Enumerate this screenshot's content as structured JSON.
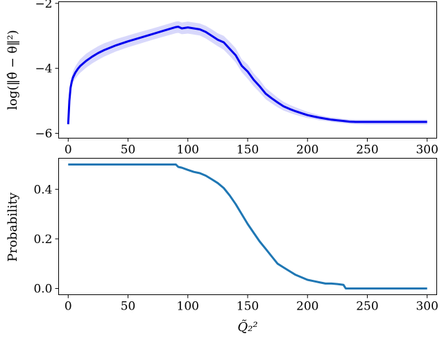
{
  "chart_data": [
    {
      "type": "line",
      "ylabel": "log(‖θ̂ − θ‖²)",
      "xlabel": "",
      "xlim": [
        -8,
        308
      ],
      "ylim": [
        -6.15,
        -1.95
      ],
      "xticks": [
        0,
        50,
        100,
        150,
        200,
        250,
        300
      ],
      "xtick_labels": [
        "0",
        "50",
        "100",
        "150",
        "200",
        "250",
        "300"
      ],
      "yticks": [
        -6,
        -4,
        -2
      ],
      "ytick_labels": [
        "−6",
        "−4",
        "−2"
      ],
      "grid": false,
      "line_color": "#0000ee",
      "band_color": "#d8d8fb",
      "series": [
        {
          "x": [
            0,
            1,
            2,
            3,
            4,
            6,
            8,
            10,
            15,
            20,
            25,
            30,
            40,
            50,
            60,
            70,
            80,
            90,
            92,
            95,
            100,
            105,
            110,
            115,
            120,
            125,
            130,
            135,
            140,
            145,
            150,
            155,
            160,
            165,
            170,
            175,
            180,
            185,
            190,
            195,
            200,
            205,
            210,
            215,
            220,
            225,
            230,
            235,
            240,
            250,
            260,
            280,
            300
          ],
          "values": [
            -5.72,
            -5.0,
            -4.6,
            -4.4,
            -4.28,
            -4.13,
            -4.02,
            -3.93,
            -3.77,
            -3.64,
            -3.53,
            -3.44,
            -3.29,
            -3.17,
            -3.06,
            -2.95,
            -2.84,
            -2.73,
            -2.72,
            -2.77,
            -2.74,
            -2.77,
            -2.8,
            -2.88,
            -3.0,
            -3.12,
            -3.2,
            -3.4,
            -3.6,
            -3.92,
            -4.1,
            -4.35,
            -4.55,
            -4.78,
            -4.92,
            -5.05,
            -5.17,
            -5.25,
            -5.32,
            -5.38,
            -5.44,
            -5.48,
            -5.52,
            -5.55,
            -5.58,
            -5.6,
            -5.62,
            -5.64,
            -5.65,
            -5.65,
            -5.65,
            -5.65,
            -5.65
          ],
          "lower": [
            -5.76,
            -5.08,
            -4.72,
            -4.55,
            -4.45,
            -4.32,
            -4.22,
            -4.14,
            -3.98,
            -3.85,
            -3.74,
            -3.64,
            -3.48,
            -3.35,
            -3.24,
            -3.13,
            -3.02,
            -2.92,
            -2.91,
            -2.95,
            -2.93,
            -2.96,
            -2.99,
            -3.08,
            -3.2,
            -3.32,
            -3.43,
            -3.62,
            -3.82,
            -4.12,
            -4.32,
            -4.55,
            -4.74,
            -4.95,
            -5.08,
            -5.2,
            -5.3,
            -5.37,
            -5.43,
            -5.48,
            -5.53,
            -5.56,
            -5.6,
            -5.62,
            -5.65,
            -5.67,
            -5.69,
            -5.71,
            -5.72,
            -5.73,
            -5.73,
            -5.73,
            -5.73
          ],
          "upper": [
            -5.68,
            -4.92,
            -4.48,
            -4.25,
            -4.1,
            -3.94,
            -3.82,
            -3.72,
            -3.55,
            -3.43,
            -3.32,
            -3.23,
            -3.1,
            -2.99,
            -2.88,
            -2.78,
            -2.67,
            -2.56,
            -2.55,
            -2.59,
            -2.56,
            -2.59,
            -2.62,
            -2.69,
            -2.8,
            -2.92,
            -3.0,
            -3.18,
            -3.38,
            -3.72,
            -3.88,
            -4.15,
            -4.35,
            -4.6,
            -4.75,
            -4.9,
            -5.03,
            -5.12,
            -5.2,
            -5.27,
            -5.34,
            -5.39,
            -5.44,
            -5.48,
            -5.51,
            -5.53,
            -5.56,
            -5.57,
            -5.58,
            -5.58,
            -5.58,
            -5.58,
            -5.58
          ]
        }
      ]
    },
    {
      "type": "line",
      "ylabel": "Probability",
      "xlabel": "Q̃₂²",
      "xlim": [
        -8,
        308
      ],
      "ylim": [
        -0.025,
        0.525
      ],
      "xticks": [
        0,
        50,
        100,
        150,
        200,
        250,
        300
      ],
      "xtick_labels": [
        "0",
        "50",
        "100",
        "150",
        "200",
        "250",
        "300"
      ],
      "yticks": [
        0.0,
        0.2,
        0.4
      ],
      "ytick_labels": [
        "0.0",
        "0.2",
        "0.4"
      ],
      "grid": false,
      "line_color": "#1f77b4",
      "series": [
        {
          "x": [
            0,
            90,
            92,
            95,
            100,
            105,
            110,
            115,
            120,
            125,
            130,
            135,
            140,
            145,
            150,
            155,
            160,
            165,
            170,
            175,
            180,
            185,
            190,
            195,
            200,
            205,
            210,
            215,
            220,
            225,
            230,
            232,
            240,
            260,
            300
          ],
          "values": [
            0.5,
            0.5,
            0.49,
            0.487,
            0.478,
            0.47,
            0.465,
            0.455,
            0.44,
            0.425,
            0.405,
            0.375,
            0.34,
            0.3,
            0.26,
            0.225,
            0.19,
            0.16,
            0.13,
            0.1,
            0.085,
            0.07,
            0.055,
            0.045,
            0.035,
            0.03,
            0.025,
            0.02,
            0.02,
            0.018,
            0.015,
            0.0,
            0.0,
            0.0,
            0.0
          ]
        }
      ]
    }
  ]
}
